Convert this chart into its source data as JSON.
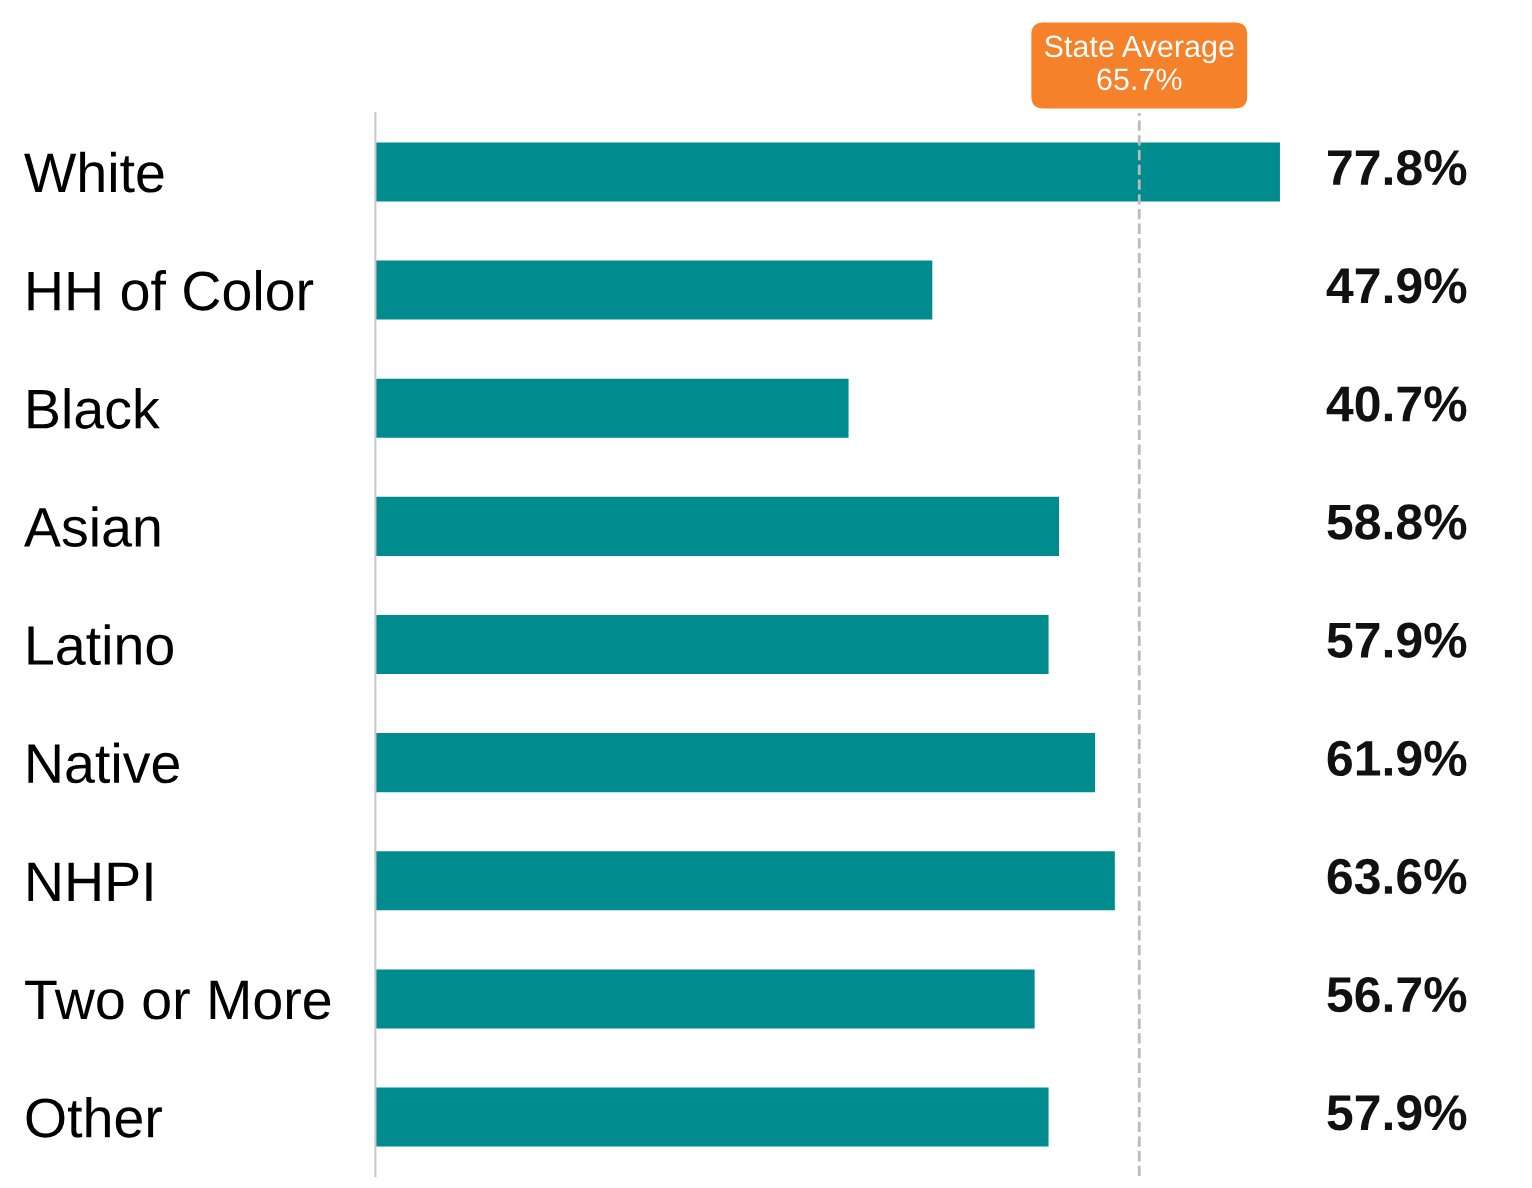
{
  "chart_data": {
    "type": "bar",
    "orientation": "horizontal",
    "categories": [
      "White",
      "HH of Color",
      "Black",
      "Asian",
      "Latino",
      "Native",
      "NHPI",
      "Two or More",
      "Other"
    ],
    "values": [
      77.8,
      47.9,
      40.7,
      58.8,
      57.9,
      61.9,
      63.6,
      56.7,
      57.9
    ],
    "value_labels": [
      "77.8%",
      "47.9%",
      "40.7%",
      "58.8%",
      "57.9%",
      "61.9%",
      "63.6%",
      "56.7%",
      "57.9%"
    ],
    "color": "#008b8f",
    "tick_labels": "y",
    "grid": false,
    "ref_lines": [
      {
        "axis": "x",
        "value": 65.7,
        "label": "State Average\n65.7%",
        "color": "#bbbbbb",
        "line_style": "dashed"
      }
    ]
  }
}
